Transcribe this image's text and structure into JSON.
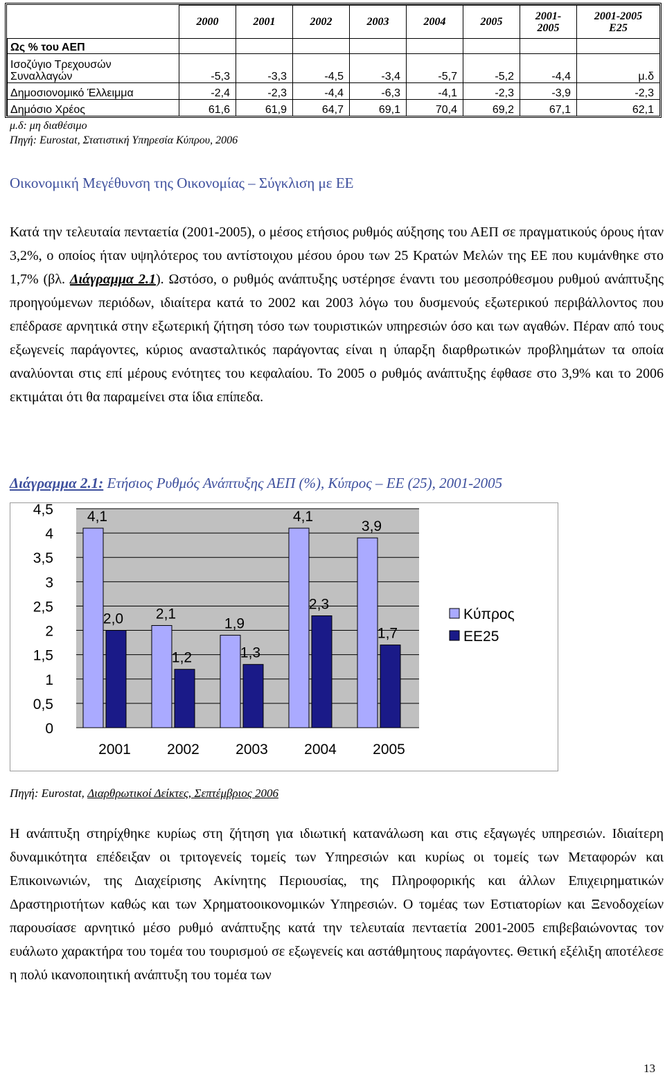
{
  "table": {
    "header": {
      "years": [
        "2000",
        "2001",
        "2002",
        "2003",
        "2004",
        "2005"
      ],
      "avg_line1": "2001-",
      "avg_line2": "2005",
      "e25_line1": "2001-2005",
      "e25_line2": "E25"
    },
    "subtitle": "Ως % του ΑΕΠ",
    "rows": [
      {
        "label_line1": "Ισοζύγιο Τρεχουσών",
        "label_line2": "Συναλλαγών",
        "values": [
          "-5,3",
          "-3,3",
          "-4,5",
          "-3,4",
          "-5,7",
          "-5,2",
          "-4,4",
          "μ.δ"
        ]
      },
      {
        "label": "Δημοσιονομικό Έλλειμμα",
        "values": [
          "-2,4",
          "-2,3",
          "-4,4",
          "-6,3",
          "-4,1",
          "-2,3",
          "-3,9",
          "-2,3"
        ]
      },
      {
        "label": "Δημόσιο Χρέος",
        "values": [
          "61,6",
          "61,9",
          "64,7",
          "69,1",
          "70,4",
          "69,2",
          "67,1",
          "62,1"
        ]
      }
    ],
    "note": "μ.δ: μη διαθέσιμο",
    "source": "Πηγή: Eurostat, Στατιστική Υπηρεσία Κύπρου, 2006"
  },
  "section_title": "Οικονομική Μεγέθυνση της Οικονομίας – Σύγκλιση με ΕΕ",
  "paragraph1": {
    "before_ref": "Κατά την τελευταία πενταετία (2001-2005), ο μέσος ετήσιος ρυθμός αύξησης του ΑΕΠ σε πραγματικούς όρους ήταν 3,2%, ο οποίος ήταν υψηλότερος του αντίστοιχου μέσου όρου των 25 Κρατών Μελών της ΕΕ που κυμάνθηκε στο 1,7% (βλ. ",
    "ref": "Διάγραμμα 2.1",
    "after_ref": "). Ωστόσο, ο ρυθμός ανάπτυξης υστέρησε έναντι του μεσοπρόθεσμου ρυθμού ανάπτυξης προηγούμενων περιόδων, ιδιαίτερα κατά το 2002 και 2003 λόγω του δυσμενούς εξωτερικού περιβάλλοντος που επέδρασε αρνητικά στην εξωτερική ζήτηση τόσο των τουριστικών υπηρεσιών όσο και των αγαθών. Πέραν από τους εξωγενείς παράγοντες, κύριος ανασταλτικός παράγοντας είναι η ύπαρξη διαρθρωτικών προβλημάτων τα οποία αναλύονται στις επί μέρους ενότητες του κεφαλαίου. Το 2005 ο ρυθμός ανάπτυξης έφθασε στο 3,9% και το 2006 εκτιμάται ότι θα παραμείνει στα ίδια επίπεδα."
  },
  "figure_caption": {
    "label": "Διάγραμμα 2.1:",
    "text": " Ετήσιος Ρυθμός Ανάπτυξης ΑΕΠ (%), Κύπρος – ΕΕ (25), 2001-2005"
  },
  "chart_data": {
    "type": "bar",
    "categories": [
      "2001",
      "2002",
      "2003",
      "2004",
      "2005"
    ],
    "series": [
      {
        "name": "Κύπρος",
        "values": [
          4.1,
          2.1,
          1.9,
          4.1,
          3.9
        ],
        "labels": [
          "4,1",
          "2,1",
          "1,9",
          "4,1",
          "3,9"
        ],
        "color": "#aaaaff"
      },
      {
        "name": "ΕΕ25",
        "values": [
          2.0,
          1.2,
          1.3,
          2.3,
          1.7
        ],
        "labels": [
          "2,0",
          "1,2",
          "1,3",
          "2,3",
          "1,7"
        ],
        "color": "#1a1a88"
      }
    ],
    "ylim": [
      0,
      4.5
    ],
    "yticks": [
      "0",
      "0,5",
      "1",
      "1,5",
      "2",
      "2,5",
      "3",
      "3,5",
      "4",
      "4,5"
    ],
    "plot_background": "#c0c0c0",
    "legend_position": "right",
    "title": "",
    "xlabel": "",
    "ylabel": ""
  },
  "chart_source": {
    "prefix": "Πηγή: Eurostat, ",
    "link": "Διαρθρωτικοί Δείκτες, Σεπτέμβριος 2006"
  },
  "paragraph2": "Η ανάπτυξη στηρίχθηκε κυρίως στη ζήτηση για ιδιωτική κατανάλωση και στις εξαγωγές υπηρεσιών. Ιδιαίτερη δυναμικότητα επέδειξαν οι τριτογενείς τομείς των Υπηρεσιών και κυρίως οι τομείς των Μεταφορών και Επικοινωνιών, της Διαχείρισης Ακίνητης Περιουσίας, της Πληροφορικής και άλλων Επιχειρηματικών Δραστηριοτήτων καθώς και των Χρηματοοικονομικών Υπηρεσιών. Ο τομέας των Εστιατορίων και Ξενοδοχείων παρουσίασε αρνητικό μέσο ρυθμό ανάπτυξης κατά την τελευταία πενταετία 2001-2005 επιβεβαιώνοντας τον ευάλωτο χαρακτήρα του τομέα του τουρισμού σε εξωγενείς και αστάθμητους παράγοντες. Θετική εξέλιξη αποτέλεσε η πολύ ικανοποιητική ανάπτυξη του τομέα των",
  "page_number": "13"
}
